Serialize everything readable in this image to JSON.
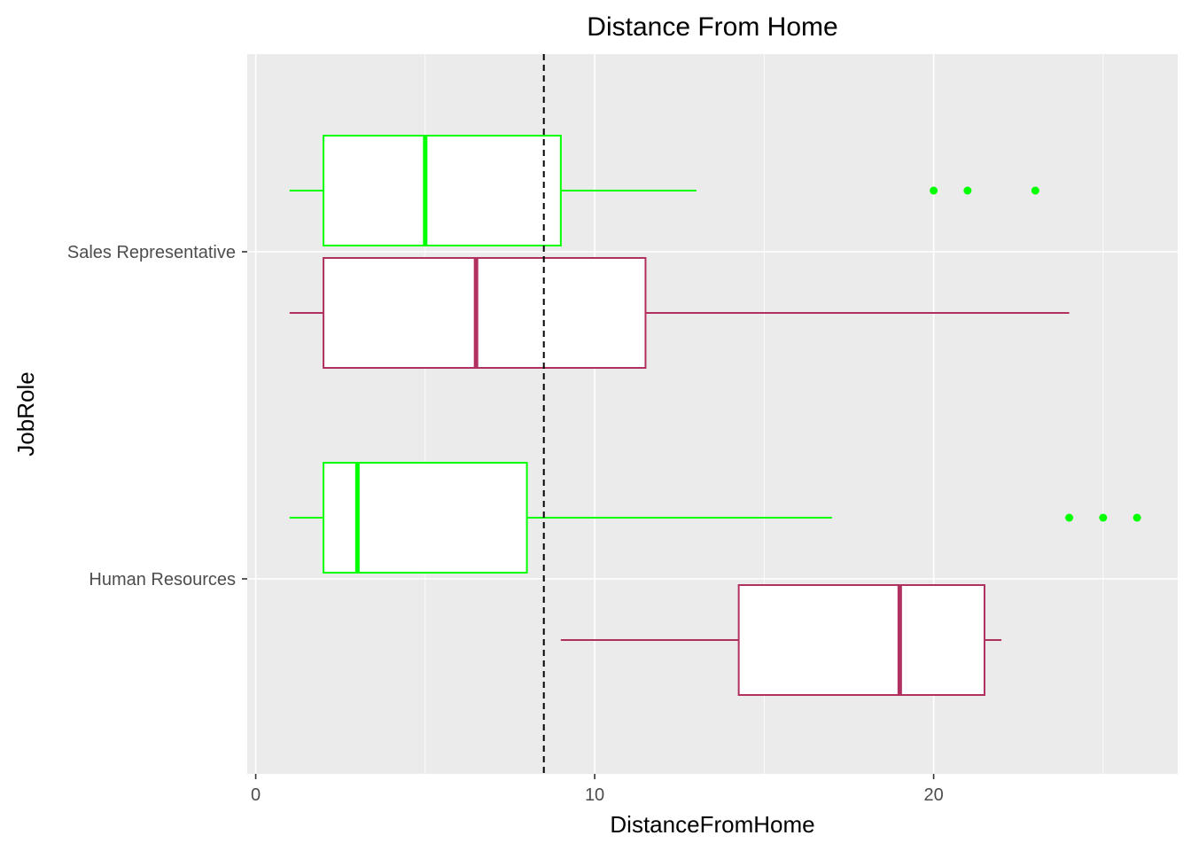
{
  "chart_data": {
    "type": "boxplot",
    "orientation": "horizontal",
    "title": "Distance From Home",
    "xlabel": "DistanceFromHome",
    "ylabel": "JobRole",
    "xlim": [
      0,
      27
    ],
    "x_ticks": [
      0,
      10,
      20
    ],
    "x_tick_labels": [
      "0",
      "10",
      "20"
    ],
    "categories": [
      "Sales Representative",
      "Human Resources"
    ],
    "reference_line": {
      "x": 8.5,
      "style": "dashed",
      "color": "#000000"
    },
    "series_colors": {
      "upper": "#00ff00",
      "lower": "#b03060"
    },
    "boxes": [
      {
        "category": "Sales Representative",
        "position": "upper",
        "color": "#00ff00",
        "whisker_low": 1,
        "q1": 2,
        "median": 5,
        "q3": 9,
        "whisker_high": 13,
        "outliers": [
          20,
          21,
          23
        ]
      },
      {
        "category": "Sales Representative",
        "position": "lower",
        "color": "#b03060",
        "whisker_low": 1,
        "q1": 2,
        "median": 6.5,
        "q3": 11.5,
        "whisker_high": 24,
        "outliers": []
      },
      {
        "category": "Human Resources",
        "position": "upper",
        "color": "#00ff00",
        "whisker_low": 1,
        "q1": 2,
        "median": 3,
        "q3": 8,
        "whisker_high": 17,
        "outliers": [
          24,
          25,
          26
        ]
      },
      {
        "category": "Human Resources",
        "position": "lower",
        "color": "#b03060",
        "whisker_low": 9,
        "q1": 14.25,
        "median": 19,
        "q3": 21.5,
        "whisker_high": 22,
        "outliers": []
      }
    ],
    "grid": true,
    "panel_background": "#ebebeb",
    "legend": "none"
  }
}
